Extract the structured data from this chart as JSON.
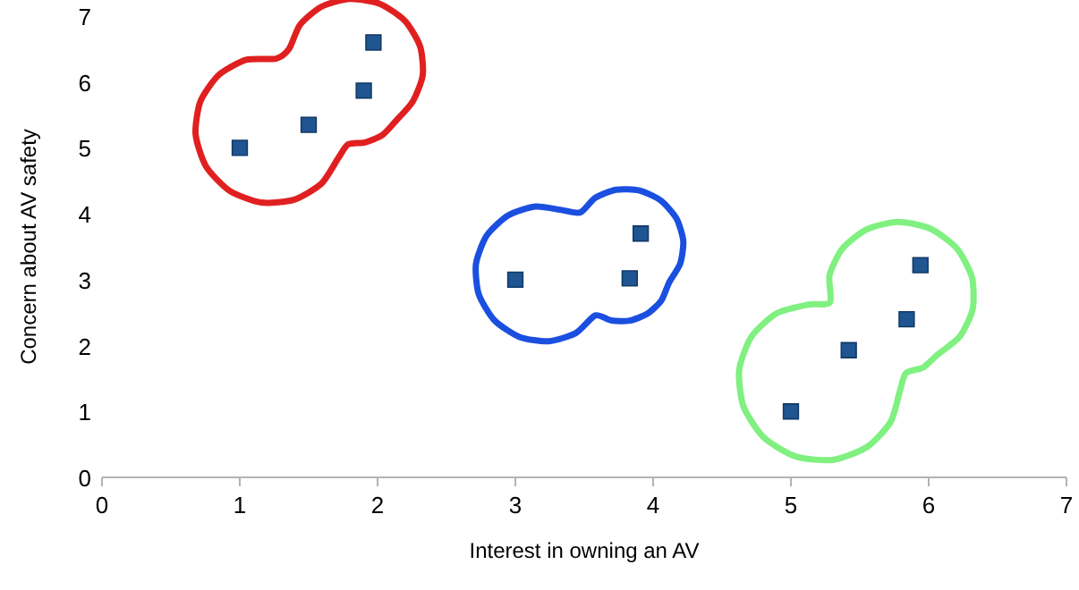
{
  "chart_data": {
    "type": "scatter",
    "xlabel": "Interest in owning an AV",
    "ylabel": "Concern about AV safety",
    "xlim": [
      0,
      7
    ],
    "xticks": [
      0,
      1,
      2,
      3,
      4,
      5,
      6,
      7
    ],
    "ylim": [
      0,
      7
    ],
    "yticks": [
      0,
      1,
      2,
      3,
      4,
      5,
      6,
      7
    ],
    "marker": "square",
    "grid": false,
    "series": [
      {
        "color": "#1f5591",
        "x": [
          1,
          1.5,
          1.9,
          1.97,
          3,
          3.83,
          3.91,
          5,
          5.42,
          5.84,
          5.94
        ],
        "values": [
          5,
          5.35,
          5.87,
          6.6,
          3,
          3.02,
          3.7,
          1,
          1.93,
          2.4,
          3.22
        ]
      }
    ]
  }
}
